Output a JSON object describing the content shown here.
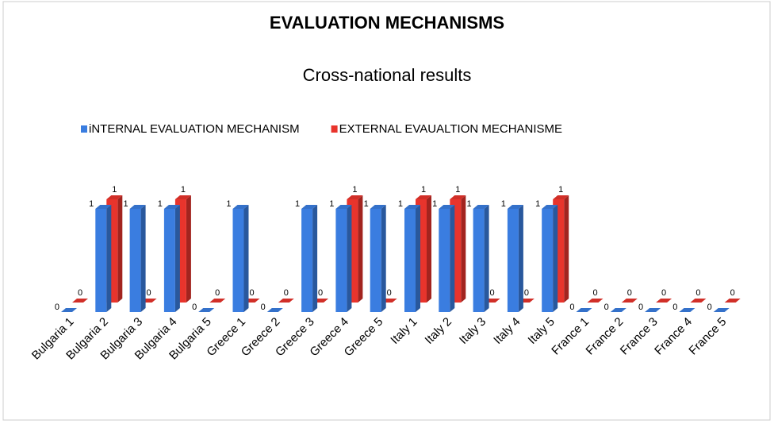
{
  "chart_data": {
    "type": "bar3d",
    "title": "EVALUATION MECHANISMS",
    "subtitle": "Cross-national results",
    "categories": [
      "Bulgaria 1",
      "Bulgaria 2",
      "Bulgaria 3",
      "Bulgaria 4",
      "Bulgaria 5",
      "Greece 1",
      "Greece 2",
      "Greece 3",
      "Greece 4",
      "Greece 5",
      "Italy 1",
      "Italy 2",
      "Italy 3",
      "Italy 4",
      "Italy 5",
      "France 1",
      "France 2",
      "France 3",
      "France 4",
      "France 5"
    ],
    "series": [
      {
        "name": "iNTERNAL EVALUATION MECHANISM",
        "color": "#3a7de0",
        "values": [
          0,
          1,
          1,
          1,
          0,
          1,
          0,
          1,
          1,
          1,
          1,
          1,
          1,
          1,
          1,
          0,
          0,
          0,
          0,
          0
        ]
      },
      {
        "name": "EXTERNAL EVAUALTION MECHANISME",
        "color": "#e8342c",
        "values": [
          0,
          1,
          0,
          1,
          0,
          0,
          0,
          0,
          1,
          0,
          1,
          1,
          0,
          0,
          1,
          0,
          0,
          0,
          0,
          0
        ]
      }
    ],
    "ylim": [
      0,
      1
    ],
    "legend": "top"
  }
}
